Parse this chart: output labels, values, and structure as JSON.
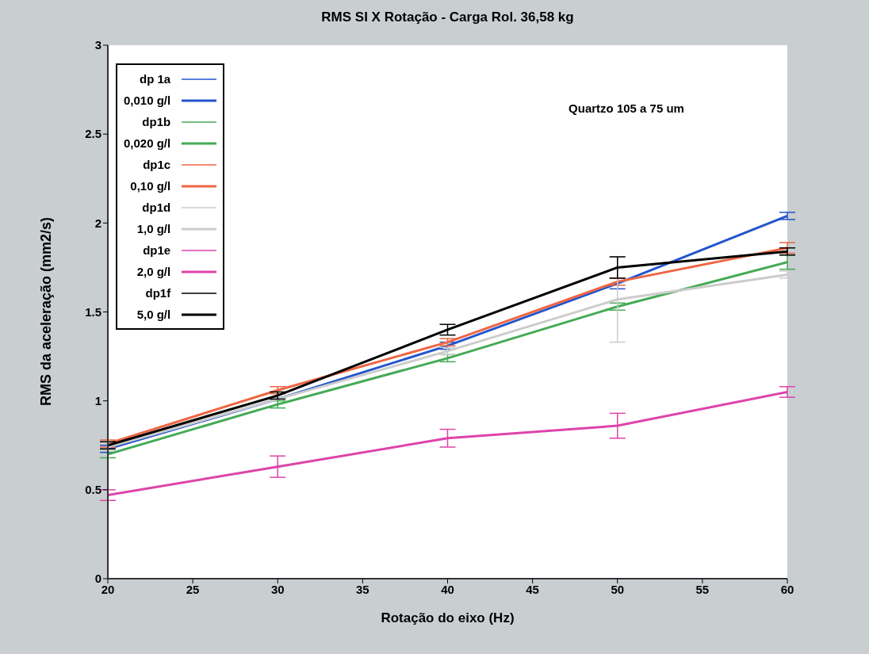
{
  "chart_data": {
    "type": "line",
    "title": "RMS SI X Rotação - Carga Rol. 36,58 kg",
    "xlabel": "Rotação do eixo (Hz)",
    "ylabel": "RMS da aceleração (mm2/s)",
    "annotations": [
      "Quartzo 105 a 75 um",
      "dp 1a",
      "dp1b",
      "dp1c",
      "dp1d",
      "dp1e",
      "dp1f"
    ],
    "x": [
      20,
      30,
      40,
      50,
      60
    ],
    "xlim": [
      20,
      60
    ],
    "xticks": [
      20,
      25,
      30,
      35,
      40,
      45,
      50,
      55,
      60
    ],
    "ylim": [
      0,
      3
    ],
    "yticks": [
      0,
      0.5,
      1,
      1.5,
      2,
      2.5,
      3
    ],
    "grid": false,
    "legend": "top left",
    "marker": "none",
    "line_style": "solid",
    "series": [
      {
        "name": "0,010 g/l",
        "color": "#2255cc",
        "values": [
          0.73,
          1.01,
          1.31,
          1.66,
          2.04
        ],
        "errors": [
          0.02,
          null,
          0.02,
          0.03,
          0.02
        ]
      },
      {
        "name": "0,020 g/l",
        "color": "#44aa55",
        "values": [
          0.7,
          0.98,
          1.24,
          1.53,
          1.78
        ],
        "errors": [
          0.02,
          0.02,
          0.02,
          0.02,
          0.04
        ]
      },
      {
        "name": "0,10 g/l",
        "color": "#ee6644",
        "values": [
          0.76,
          1.06,
          1.33,
          1.67,
          1.86
        ],
        "errors": [
          0.02,
          0.02,
          0.02,
          0.02,
          0.03
        ]
      },
      {
        "name": "1,0 g/l",
        "color": "#cccccc",
        "values": [
          0.74,
          1.01,
          1.28,
          1.57,
          1.71
        ],
        "errors": [
          0.02,
          null,
          0.02,
          0.24,
          0.02
        ]
      },
      {
        "name": "2,0 g/l",
        "color": "#dd44aa",
        "values": [
          0.47,
          0.63,
          0.79,
          0.86,
          1.05
        ],
        "errors": [
          0.03,
          0.06,
          0.05,
          0.07,
          0.03
        ]
      },
      {
        "name": "5,0 g/l",
        "color": "#000000",
        "values": [
          0.75,
          1.03,
          1.4,
          1.75,
          1.84
        ],
        "errors": [
          0.02,
          0.02,
          0.03,
          0.06,
          0.02
        ]
      }
    ]
  }
}
